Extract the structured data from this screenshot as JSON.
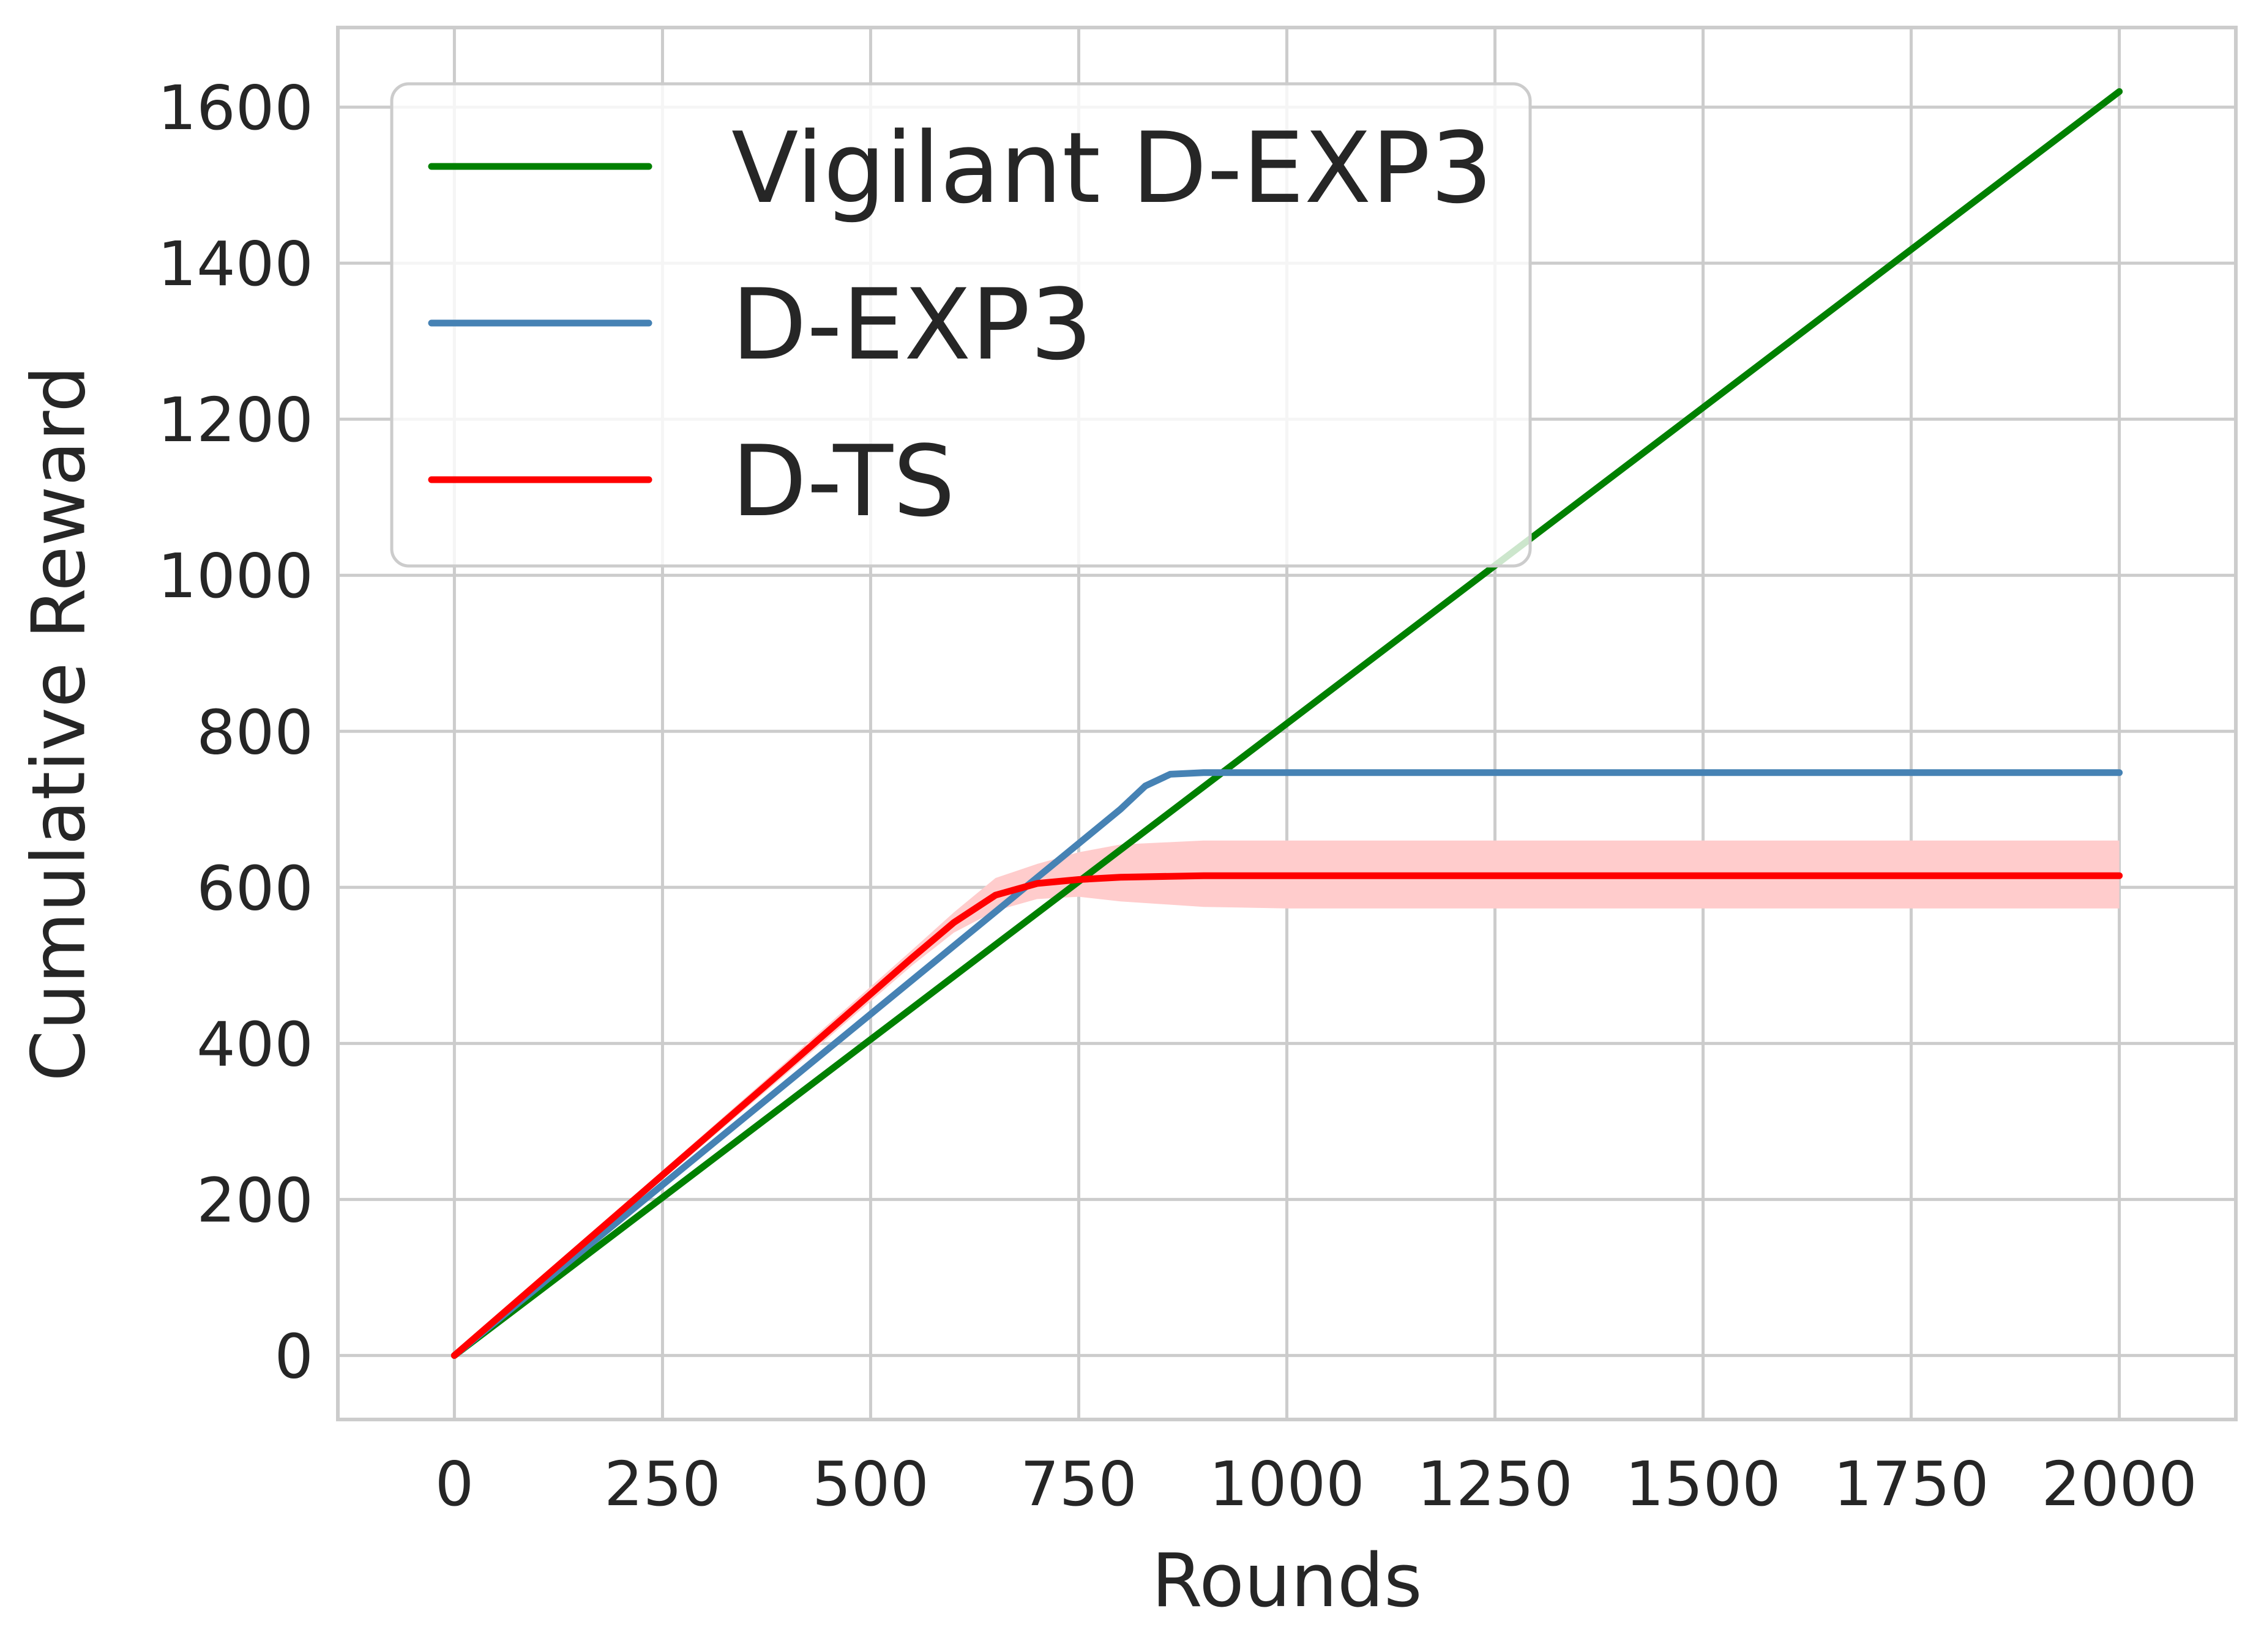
{
  "chart_data": {
    "type": "line",
    "xlabel": "Rounds",
    "ylabel": "Cumulative Reward",
    "xlim": [
      -140,
      2140
    ],
    "ylim": [
      -82,
      1702
    ],
    "xticks": [
      0,
      250,
      500,
      750,
      1000,
      1250,
      1500,
      1750,
      2000
    ],
    "yticks": [
      0,
      200,
      400,
      600,
      800,
      1000,
      1200,
      1400,
      1600
    ],
    "grid": true,
    "legend_position": "top-left",
    "series": [
      {
        "name": "Vigilant D-EXP3",
        "color": "#008000",
        "x": [
          0,
          2000
        ],
        "y": [
          0,
          1620
        ]
      },
      {
        "name": "D-EXP3",
        "color": "#4682b4",
        "x": [
          0,
          200,
          400,
          600,
          800,
          830,
          860,
          900,
          1000,
          1500,
          2000
        ],
        "y": [
          0,
          175,
          350,
          525,
          700,
          730,
          745,
          747,
          747,
          747,
          747
        ]
      },
      {
        "name": "D-TS",
        "color": "#ff0000",
        "x": [
          0,
          200,
          400,
          550,
          600,
          650,
          700,
          750,
          800,
          900,
          1000,
          1500,
          2000
        ],
        "y": [
          0,
          185,
          370,
          510,
          555,
          590,
          605,
          610,
          613,
          615,
          615,
          615,
          615
        ],
        "band_upper": [
          0,
          190,
          378,
          520,
          568,
          612,
          630,
          645,
          655,
          660,
          660,
          660,
          660
        ],
        "band_lower": [
          0,
          180,
          362,
          500,
          542,
          570,
          585,
          588,
          582,
          575,
          573,
          573,
          573
        ],
        "band_color": "#ffcccc"
      }
    ]
  }
}
